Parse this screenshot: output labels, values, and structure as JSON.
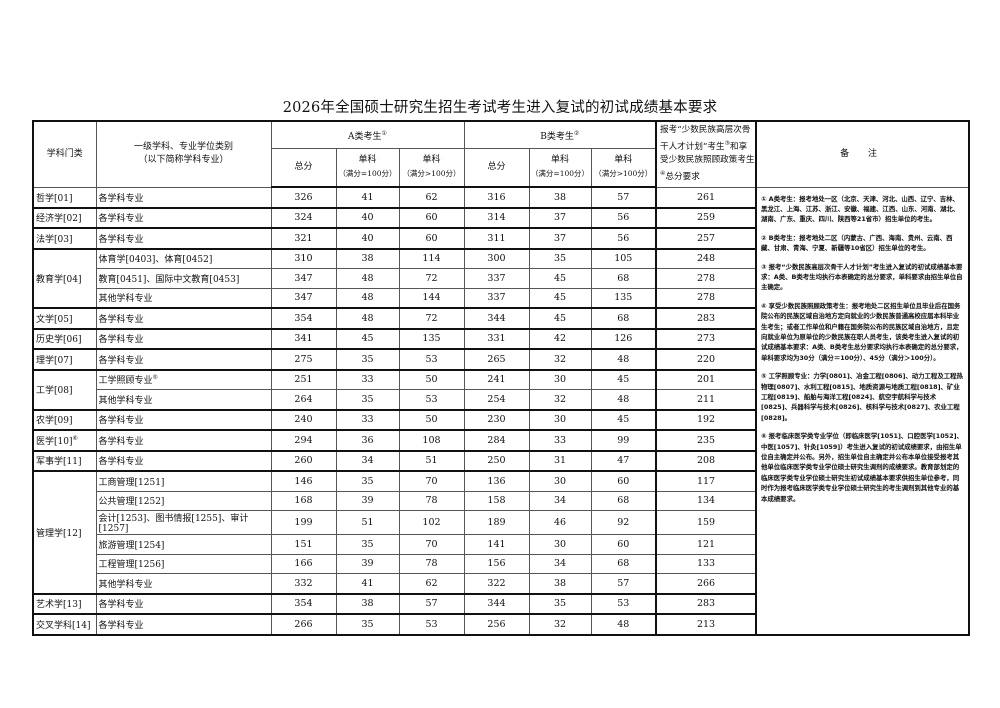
{
  "title": "2026年全国硕士研究生招生考试考生进入复试的初试成绩基本要求",
  "header": {
    "discipline": "学科门类",
    "major_line1": "一级学科、专业学位类别",
    "major_line2": "（以下简称学科专业）",
    "group_a": "A类考生",
    "group_a_mark": "①",
    "group_b": "B类考生",
    "group_b_mark": "②",
    "total": "总分",
    "single": "单科",
    "single_100": "（满分=100分）",
    "single_gt100": "（满分>100分）",
    "special_part1": "报考“少数民族高层次骨干人才计划”考生",
    "special_mark1": "③",
    "special_part2": "和享受少数民族照顾政策考生",
    "special_mark2": "④",
    "special_part3": "总分要求",
    "notes": "备 注"
  },
  "rows": [
    {
      "subject": "哲学[01]",
      "span": 1,
      "major": "各学科专业",
      "values": [
        326,
        41,
        62,
        316,
        38,
        57,
        261
      ]
    },
    {
      "subject": "经济学[02]",
      "span": 1,
      "major": "各学科专业",
      "values": [
        324,
        40,
        60,
        314,
        37,
        56,
        259
      ]
    },
    {
      "subject": "法学[03]",
      "span": 1,
      "major": "各学科专业",
      "values": [
        321,
        40,
        60,
        311,
        37,
        56,
        257
      ]
    },
    {
      "subject": "教育学[04]",
      "span": 3,
      "major": "体育学[0403]、体育[0452]",
      "values": [
        310,
        38,
        114,
        300,
        35,
        105,
        248
      ]
    },
    {
      "major": "教育[0451]、国际中文教育[0453]",
      "values": [
        347,
        48,
        72,
        337,
        45,
        68,
        278
      ]
    },
    {
      "major": "其他学科专业",
      "values": [
        347,
        48,
        144,
        337,
        45,
        135,
        278
      ]
    },
    {
      "subject": "文学[05]",
      "span": 1,
      "major": "各学科专业",
      "values": [
        354,
        48,
        72,
        344,
        45,
        68,
        283
      ]
    },
    {
      "subject": "历史学[06]",
      "span": 1,
      "major": "各学科专业",
      "values": [
        341,
        45,
        135,
        331,
        42,
        126,
        273
      ]
    },
    {
      "subject": "理学[07]",
      "span": 1,
      "major": "各学科专业",
      "values": [
        275,
        35,
        53,
        265,
        32,
        48,
        220
      ]
    },
    {
      "subject": "工学[08]",
      "span": 2,
      "major": "工学照顾专业",
      "major_mark": "⑤",
      "values": [
        251,
        33,
        50,
        241,
        30,
        45,
        201
      ]
    },
    {
      "major": "其他学科专业",
      "values": [
        264,
        35,
        53,
        254,
        32,
        48,
        211
      ]
    },
    {
      "subject": "农学[09]",
      "span": 1,
      "major": "各学科专业",
      "values": [
        240,
        33,
        50,
        230,
        30,
        45,
        192
      ]
    },
    {
      "subject": "医学[10]",
      "subject_mark": "⑥",
      "span": 1,
      "major": "各学科专业",
      "values": [
        294,
        36,
        108,
        284,
        33,
        99,
        235
      ]
    },
    {
      "subject": "军事学[11]",
      "span": 1,
      "major": "各学科专业",
      "values": [
        260,
        34,
        51,
        250,
        31,
        47,
        208
      ]
    },
    {
      "subject": "管理学[12]",
      "span": 6,
      "major": "工商管理[1251]",
      "values": [
        146,
        35,
        70,
        136,
        30,
        60,
        117
      ]
    },
    {
      "major": "公共管理[1252]",
      "values": [
        168,
        39,
        78,
        158,
        34,
        68,
        134
      ]
    },
    {
      "major": "会计[1253]、图书情报[1255]、审计[1257]",
      "values": [
        199,
        51,
        102,
        189,
        46,
        92,
        159
      ]
    },
    {
      "major": "旅游管理[1254]",
      "values": [
        151,
        35,
        70,
        141,
        30,
        60,
        121
      ]
    },
    {
      "major": "工程管理[1256]",
      "values": [
        166,
        39,
        78,
        156,
        34,
        68,
        133
      ]
    },
    {
      "major": "其他学科专业",
      "values": [
        332,
        41,
        62,
        322,
        38,
        57,
        266
      ]
    },
    {
      "subject": "艺术学[13]",
      "span": 1,
      "major": "各学科专业",
      "values": [
        354,
        38,
        57,
        344,
        35,
        53,
        283
      ]
    },
    {
      "subject": "交叉学科[14]",
      "span": 1,
      "major": "各学科专业",
      "values": [
        266,
        35,
        53,
        256,
        32,
        48,
        213
      ]
    }
  ],
  "notes": [
    "① A类考生：报考地处一区（北京、天津、河北、山西、辽宁、吉林、黑龙江、上海、江苏、浙江、安徽、福建、江西、山东、河南、湖北、湖南、广东、重庆、四川、陕西等21省市）招生单位的考生。",
    "② B类考生：报考地处二区（内蒙古、广西、海南、贵州、云南、西藏、甘肃、青海、宁夏、新疆等10省区）招生单位的考生。",
    "③ 报考“少数民族高层次骨干人才计划”考生进入复试的初试成绩基本要求：A类、B类考生均执行本表确定的总分要求，单科要求由招生单位自主确定。",
    "④ 享受少数民族照顾政策考生：报考地处二区招生单位且毕业后在国务院公布的民族区域自治地方定向就业的少数民族普通高校应届本科毕业生考生；或者工作单位和户籍在国务院公布的民族区域自治地方，且定向就业单位为原单位的少数民族在职人员考生，该类考生进入复试的初试成绩基本要求：A类、B类考生总分要求均执行本表确定的总分要求，单科要求均为30分（满分＝100分）、45分（满分＞100分）。",
    "⑤ 工学照顾专业：力学[0801]、冶金工程[0806]、动力工程及工程热物理[0807]、水利工程[0815]、地质资源与地质工程[0818]、矿业工程[0819]、船舶与海洋工程[0824]、航空宇航科学与技术[0825]、兵器科学与技术[0826]、核科学与技术[0827]、农业工程[0828]。",
    "⑥ 报考临床医学类专业学位（即临床医学[1051]、口腔医学[1052]、中医[1057]、针灸[1059]）考生进入复试的初试成绩要求，由招生单位自主确定并公布。另外，招生单位自主确定并公布本单位接受报考其他单位临床医学类专业学位硕士研究生调剂的成绩要求。教育部划定的临床医学类专业学位硕士研究生初试成绩基本要求供招生单位参考，同时作为报考临床医学类专业学位硕士研究生的考生调剂到其他专业的基本成绩要求。"
  ]
}
